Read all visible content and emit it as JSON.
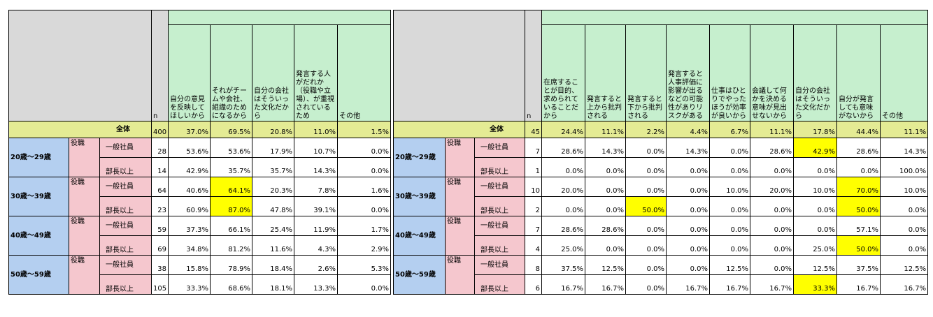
{
  "table_left": {
    "n_label": "n",
    "question_headers": [
      "自分の意見を反映してほしいから",
      "それがチームや会社、組織のためになるから",
      "自分の会社はそういった文化だから",
      "発言する人がだれか（役職や立場）、が重視されているため",
      "その他"
    ],
    "total": {
      "label": "全体",
      "n": "400",
      "values": [
        "37.0%",
        "69.5%",
        "20.8%",
        "11.0%",
        "1.5%"
      ]
    },
    "role_label": "役職",
    "groups": [
      {
        "age": "20歳～29歳",
        "rows": [
          {
            "position": "一般社員",
            "n": "28",
            "values": [
              "53.6%",
              "53.6%",
              "17.9%",
              "10.7%",
              "0.0%"
            ],
            "highlight": []
          },
          {
            "position": "部長以上",
            "n": "14",
            "values": [
              "42.9%",
              "35.7%",
              "35.7%",
              "14.3%",
              "0.0%"
            ],
            "highlight": []
          }
        ]
      },
      {
        "age": "30歳～39歳",
        "rows": [
          {
            "position": "一般社員",
            "n": "64",
            "values": [
              "40.6%",
              "64.1%",
              "20.3%",
              "7.8%",
              "1.6%"
            ],
            "highlight": [
              1
            ]
          },
          {
            "position": "部長以上",
            "n": "23",
            "values": [
              "60.9%",
              "87.0%",
              "47.8%",
              "39.1%",
              "0.0%"
            ],
            "highlight": [
              1
            ]
          }
        ]
      },
      {
        "age": "40歳～49歳",
        "rows": [
          {
            "position": "一般社員",
            "n": "59",
            "values": [
              "37.3%",
              "66.1%",
              "25.4%",
              "11.9%",
              "1.7%"
            ],
            "highlight": []
          },
          {
            "position": "部長以上",
            "n": "69",
            "values": [
              "34.8%",
              "81.2%",
              "11.6%",
              "4.3%",
              "2.9%"
            ],
            "highlight": []
          }
        ]
      },
      {
        "age": "50歳～59歳",
        "rows": [
          {
            "position": "一般社員",
            "n": "38",
            "values": [
              "15.8%",
              "78.9%",
              "18.4%",
              "2.6%",
              "5.3%"
            ],
            "highlight": []
          },
          {
            "position": "部長以上",
            "n": "105",
            "values": [
              "33.3%",
              "68.6%",
              "18.1%",
              "13.3%",
              "0.0%"
            ],
            "highlight": []
          }
        ]
      }
    ]
  },
  "table_right": {
    "n_label": "n",
    "question_headers": [
      "在席することが目的、求められていることだから",
      "発言すると上から批判される",
      "発言すると下から批判される",
      "発言すると人事評価に影響が出るなどの可能性がありリスクがある",
      "仕事はひとりでやったほうが効率が良いから",
      "会議して何かを決める意味が見出せないから",
      "自分の会社はそういった文化だから",
      "自分が発言しても意味がないから",
      "その他"
    ],
    "total": {
      "label": "全体",
      "n": "45",
      "values": [
        "24.4%",
        "11.1%",
        "2.2%",
        "4.4%",
        "6.7%",
        "11.1%",
        "17.8%",
        "44.4%",
        "11.1%"
      ]
    },
    "role_label": "役職",
    "groups": [
      {
        "age": "20歳～29歳",
        "rows": [
          {
            "position": "一般社員",
            "n": "7",
            "values": [
              "28.6%",
              "14.3%",
              "0.0%",
              "14.3%",
              "0.0%",
              "28.6%",
              "42.9%",
              "28.6%",
              "14.3%"
            ],
            "highlight": [
              6
            ]
          },
          {
            "position": "部長以上",
            "n": "1",
            "values": [
              "0.0%",
              "0.0%",
              "0.0%",
              "0.0%",
              "0.0%",
              "0.0%",
              "0.0%",
              "0.0%",
              "100.0%"
            ],
            "highlight": []
          }
        ]
      },
      {
        "age": "30歳～39歳",
        "rows": [
          {
            "position": "一般社員",
            "n": "10",
            "values": [
              "20.0%",
              "0.0%",
              "0.0%",
              "0.0%",
              "10.0%",
              "20.0%",
              "10.0%",
              "70.0%",
              "10.0%"
            ],
            "highlight": [
              7
            ]
          },
          {
            "position": "部長以上",
            "n": "2",
            "values": [
              "0.0%",
              "0.0%",
              "50.0%",
              "0.0%",
              "0.0%",
              "0.0%",
              "0.0%",
              "50.0%",
              "0.0%"
            ],
            "highlight": [
              2,
              7
            ]
          }
        ]
      },
      {
        "age": "40歳～49歳",
        "rows": [
          {
            "position": "一般社員",
            "n": "7",
            "values": [
              "28.6%",
              "28.6%",
              "0.0%",
              "0.0%",
              "0.0%",
              "0.0%",
              "0.0%",
              "57.1%",
              "0.0%"
            ],
            "highlight": []
          },
          {
            "position": "部長以上",
            "n": "4",
            "values": [
              "25.0%",
              "0.0%",
              "0.0%",
              "0.0%",
              "0.0%",
              "0.0%",
              "25.0%",
              "50.0%",
              "0.0%"
            ],
            "highlight": [
              7
            ]
          }
        ]
      },
      {
        "age": "50歳～59歳",
        "rows": [
          {
            "position": "一般社員",
            "n": "8",
            "values": [
              "37.5%",
              "12.5%",
              "0.0%",
              "0.0%",
              "12.5%",
              "0.0%",
              "12.5%",
              "37.5%",
              "12.5%"
            ],
            "highlight": []
          },
          {
            "position": "部長以上",
            "n": "6",
            "values": [
              "16.7%",
              "16.7%",
              "0.0%",
              "16.7%",
              "16.7%",
              "16.7%",
              "33.3%",
              "16.7%",
              "16.7%"
            ],
            "highlight": [
              6
            ]
          }
        ]
      }
    ]
  }
}
